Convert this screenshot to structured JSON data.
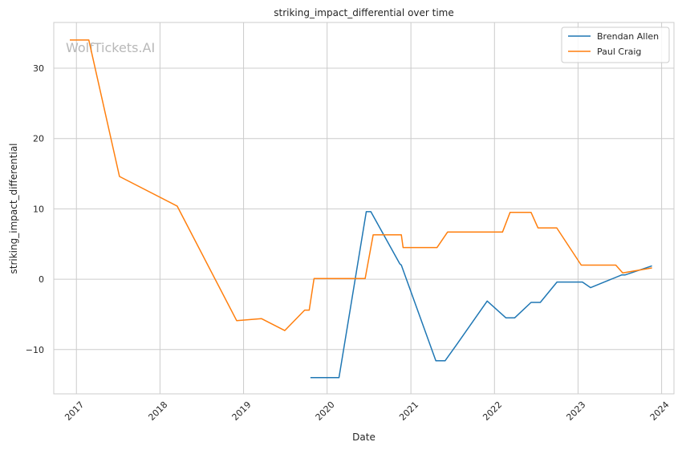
{
  "chart_data": {
    "type": "line",
    "title": "striking_impact_differential over time",
    "xlabel": "Date",
    "ylabel": "striking_impact_differential",
    "xlim": [
      "2016-09-24",
      "2024-02-24"
    ],
    "ylim": [
      -16.3,
      36.5
    ],
    "x_ticks": [
      "2017",
      "2018",
      "2019",
      "2020",
      "2021",
      "2022",
      "2023",
      "2024"
    ],
    "y_ticks": [
      -10,
      0,
      10,
      20,
      30
    ],
    "grid": true,
    "legend_position": "upper right",
    "watermark": "WolfTickets.AI",
    "series": [
      {
        "name": "Brendan Allen",
        "color": "#1f77b4",
        "points": [
          [
            "2019-10-20",
            -14.0
          ],
          [
            "2020-02-22",
            -14.0
          ],
          [
            "2020-06-20",
            9.6
          ],
          [
            "2020-07-10",
            9.6
          ],
          [
            "2020-11-13",
            2.2
          ],
          [
            "2020-11-20",
            2.0
          ],
          [
            "2021-04-20",
            -11.6
          ],
          [
            "2021-05-30",
            -11.6
          ],
          [
            "2021-07-20",
            -9.3
          ],
          [
            "2021-11-30",
            -3.1
          ],
          [
            "2022-02-20",
            -5.5
          ],
          [
            "2022-03-30",
            -5.5
          ],
          [
            "2022-06-10",
            -3.3
          ],
          [
            "2022-07-20",
            -3.3
          ],
          [
            "2022-10-01",
            -0.4
          ],
          [
            "2023-01-20",
            -0.4
          ],
          [
            "2023-02-25",
            -1.2
          ],
          [
            "2023-07-10",
            0.6
          ],
          [
            "2023-07-25",
            0.6
          ],
          [
            "2023-11-20",
            1.9
          ]
        ]
      },
      {
        "name": "Paul Craig",
        "color": "#ff7f0e",
        "points": [
          [
            "2016-12-03",
            34.0
          ],
          [
            "2017-02-24",
            34.0
          ],
          [
            "2017-07-08",
            14.6
          ],
          [
            "2018-03-17",
            10.4
          ],
          [
            "2018-12-02",
            -5.9
          ],
          [
            "2019-03-20",
            -5.6
          ],
          [
            "2019-06-30",
            -7.3
          ],
          [
            "2019-09-25",
            -4.4
          ],
          [
            "2019-10-15",
            -4.4
          ],
          [
            "2019-11-05",
            0.1
          ],
          [
            "2020-06-15",
            0.1
          ],
          [
            "2020-07-20",
            6.3
          ],
          [
            "2020-11-20",
            6.3
          ],
          [
            "2020-11-28",
            4.5
          ],
          [
            "2021-04-25",
            4.5
          ],
          [
            "2021-06-10",
            6.7
          ],
          [
            "2022-02-05",
            6.7
          ],
          [
            "2022-03-10",
            9.5
          ],
          [
            "2022-06-10",
            9.5
          ],
          [
            "2022-07-10",
            7.3
          ],
          [
            "2022-09-30",
            7.3
          ],
          [
            "2023-01-15",
            2.0
          ],
          [
            "2023-06-15",
            2.0
          ],
          [
            "2023-07-15",
            0.9
          ],
          [
            "2023-11-20",
            1.6
          ]
        ]
      }
    ]
  }
}
